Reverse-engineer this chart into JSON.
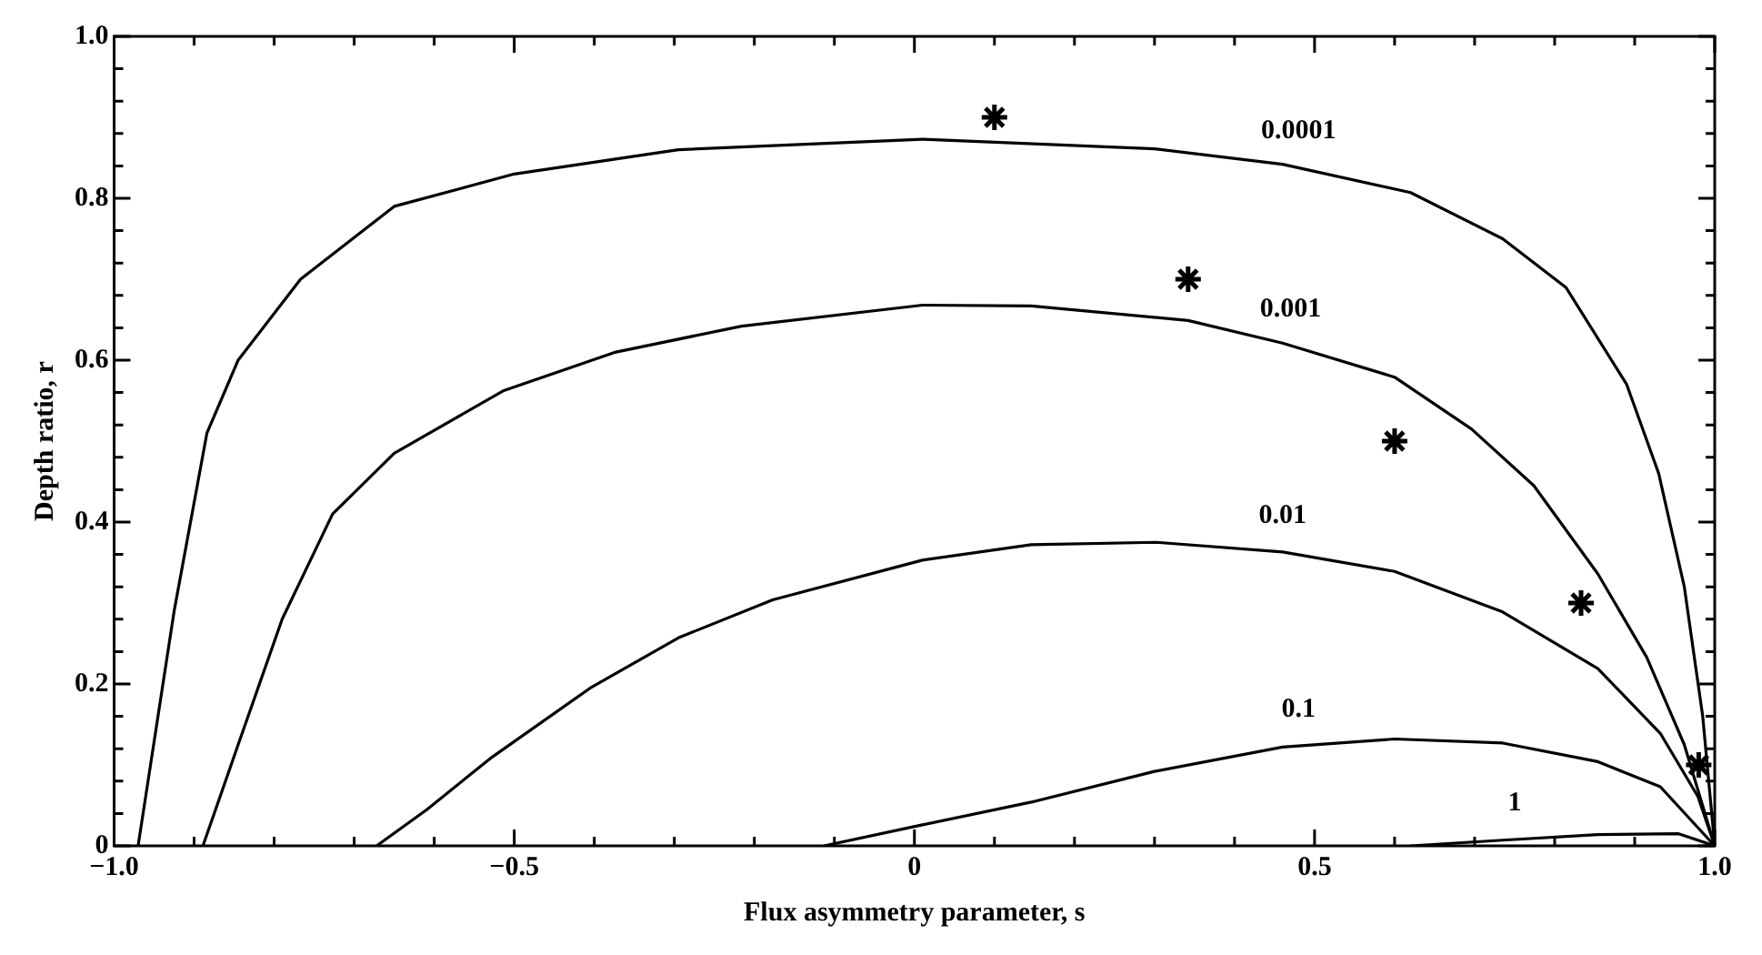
{
  "chart_data": {
    "type": "line",
    "xlabel": "Flux asymmetry parameter, s",
    "ylabel": "Depth ratio, r",
    "xlim": [
      -1,
      1
    ],
    "ylim": [
      0,
      1
    ],
    "xticks": [
      {
        "value": -1,
        "label": "−1.0"
      },
      {
        "value": -0.9,
        "label": null
      },
      {
        "value": -0.8,
        "label": null
      },
      {
        "value": -0.7,
        "label": null
      },
      {
        "value": -0.6,
        "label": null
      },
      {
        "value": -0.5,
        "label": "−0.5"
      },
      {
        "value": -0.4,
        "label": null
      },
      {
        "value": -0.3,
        "label": null
      },
      {
        "value": -0.2,
        "label": null
      },
      {
        "value": -0.1,
        "label": null
      },
      0,
      {
        "value": 0.1,
        "label": null
      },
      {
        "value": 0.2,
        "label": null
      },
      {
        "value": 0.3,
        "label": null
      },
      {
        "value": 0.4,
        "label": null
      },
      0.5,
      {
        "value": 0.6,
        "label": null
      },
      {
        "value": 0.7,
        "label": null
      },
      {
        "value": 0.8,
        "label": null
      },
      {
        "value": 0.9,
        "label": null
      },
      {
        "value": 1,
        "label": "1.0"
      }
    ],
    "yticks": [
      0,
      {
        "value": 0.04,
        "label": null
      },
      {
        "value": 0.08,
        "label": null
      },
      {
        "value": 0.12,
        "label": null
      },
      {
        "value": 0.16,
        "label": null
      },
      0.2,
      {
        "value": 0.24,
        "label": null
      },
      {
        "value": 0.28,
        "label": null
      },
      {
        "value": 0.32,
        "label": null
      },
      {
        "value": 0.36,
        "label": null
      },
      0.4,
      {
        "value": 0.44,
        "label": null
      },
      {
        "value": 0.48,
        "label": null
      },
      {
        "value": 0.52,
        "label": null
      },
      {
        "value": 0.56,
        "label": null
      },
      0.6,
      {
        "value": 0.64,
        "label": null
      },
      {
        "value": 0.68,
        "label": null
      },
      {
        "value": 0.72,
        "label": null
      },
      {
        "value": 0.76,
        "label": null
      },
      0.8,
      {
        "value": 0.84,
        "label": null
      },
      {
        "value": 0.88,
        "label": null
      },
      {
        "value": 0.92,
        "label": null
      },
      {
        "value": 0.96,
        "label": null
      },
      {
        "value": 1,
        "label": "1.0"
      }
    ],
    "series": [
      {
        "name": "0.0001",
        "color": "#000000",
        "x": [
          -0.97,
          -0.925,
          -0.884,
          -0.845,
          -0.767,
          -0.65,
          -0.5,
          -0.295,
          0.01,
          0.3,
          0.46,
          0.62,
          0.735,
          0.814,
          0.89,
          0.93,
          0.962,
          0.985,
          1
        ],
        "values": [
          0,
          0.29,
          0.51,
          0.6,
          0.7,
          0.79,
          0.83,
          0.86,
          0.873,
          0.861,
          0.842,
          0.807,
          0.75,
          0.69,
          0.57,
          0.46,
          0.32,
          0.16,
          0
        ]
      },
      {
        "name": "0.001",
        "color": "#000000",
        "x": [
          -0.889,
          -0.845,
          -0.79,
          -0.727,
          -0.65,
          -0.514,
          -0.373,
          -0.216,
          0.01,
          0.146,
          0.342,
          0.46,
          0.6,
          0.696,
          0.774,
          0.854,
          0.915,
          0.962,
          1
        ],
        "values": [
          0,
          0.125,
          0.28,
          0.41,
          0.485,
          0.562,
          0.61,
          0.642,
          0.668,
          0.667,
          0.649,
          0.621,
          0.579,
          0.515,
          0.445,
          0.336,
          0.233,
          0.125,
          0
        ]
      },
      {
        "name": "0.01",
        "color": "#000000",
        "x": [
          -0.672,
          -0.609,
          -0.53,
          -0.405,
          -0.295,
          -0.177,
          0.01,
          0.146,
          0.302,
          0.46,
          0.6,
          0.735,
          0.854,
          0.932,
          0.979,
          1
        ],
        "values": [
          0,
          0.045,
          0.108,
          0.195,
          0.257,
          0.304,
          0.353,
          0.372,
          0.375,
          0.363,
          0.339,
          0.289,
          0.219,
          0.139,
          0.061,
          0
        ]
      },
      {
        "name": "0.1",
        "color": "#000000",
        "x": [
          -0.113,
          0.01,
          0.146,
          0.3,
          0.46,
          0.6,
          0.735,
          0.854,
          0.932,
          1
        ],
        "values": [
          0,
          0.026,
          0.054,
          0.092,
          0.122,
          0.132,
          0.127,
          0.104,
          0.073,
          0
        ]
      },
      {
        "name": "1",
        "color": "#000000",
        "x": [
          0.62,
          0.735,
          0.854,
          0.955,
          1
        ],
        "values": [
          0,
          0.007,
          0.014,
          0.015,
          0
        ]
      },
      {
        "type": "scatter",
        "color": "#000000",
        "marker": "cross",
        "x": [
          0.1,
          0.342,
          0.6,
          0.833,
          0.98
        ],
        "values": [
          0.9,
          0.7,
          0.5,
          0.3,
          0.1
        ]
      }
    ]
  }
}
